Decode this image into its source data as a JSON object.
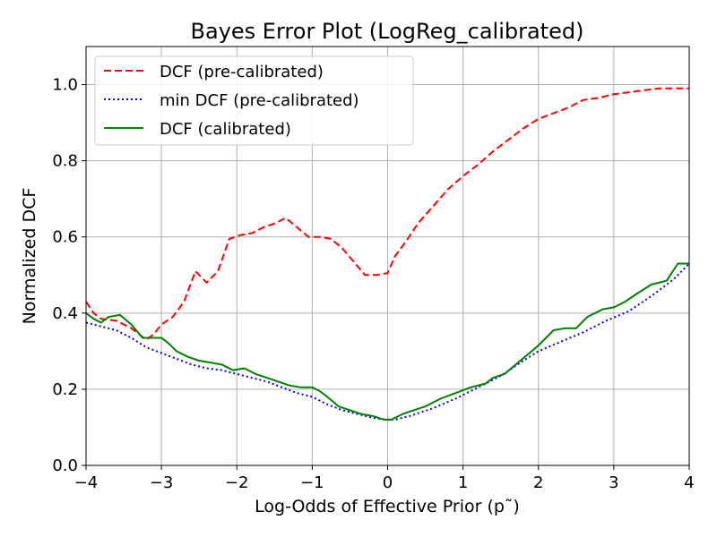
{
  "chart_data": {
    "type": "line",
    "title": "Bayes Error Plot (LogReg_calibrated)",
    "xlabel": "Log-Odds of Effective Prior (p˜)",
    "ylabel": "Normalized DCF",
    "xlim": [
      -4,
      4
    ],
    "ylim": [
      0,
      1.1
    ],
    "xticks": [
      -4,
      -3,
      -2,
      -1,
      0,
      1,
      2,
      3,
      4
    ],
    "xtick_labels": [
      "−4",
      "−3",
      "−2",
      "−1",
      "0",
      "1",
      "2",
      "3",
      "4"
    ],
    "yticks": [
      0,
      0.2,
      0.4,
      0.6,
      0.8,
      1.0
    ],
    "ytick_labels": [
      "0.0",
      "0.2",
      "0.4",
      "0.6",
      "0.8",
      "1.0"
    ],
    "grid": true,
    "legend_position": "top-left",
    "series": [
      {
        "name": "DCF (pre-calibrated)",
        "color": "#ff0000",
        "style": "dashed",
        "x": [
          -4.0,
          -3.9,
          -3.8,
          -3.6,
          -3.4,
          -3.2,
          -3.1,
          -3.0,
          -2.85,
          -2.7,
          -2.55,
          -2.4,
          -2.25,
          -2.1,
          -1.95,
          -1.8,
          -1.65,
          -1.5,
          -1.35,
          -1.2,
          -1.05,
          -0.9,
          -0.75,
          -0.6,
          -0.45,
          -0.3,
          -0.15,
          0.0,
          0.1,
          0.25,
          0.4,
          0.6,
          0.8,
          1.0,
          1.2,
          1.4,
          1.6,
          1.8,
          2.0,
          2.2,
          2.4,
          2.6,
          2.8,
          3.0,
          3.2,
          3.4,
          3.6,
          3.8,
          4.0
        ],
        "values": [
          0.43,
          0.4,
          0.385,
          0.38,
          0.36,
          0.33,
          0.345,
          0.37,
          0.39,
          0.43,
          0.51,
          0.48,
          0.51,
          0.595,
          0.605,
          0.61,
          0.625,
          0.635,
          0.65,
          0.625,
          0.6,
          0.6,
          0.595,
          0.57,
          0.535,
          0.5,
          0.5,
          0.505,
          0.55,
          0.59,
          0.635,
          0.68,
          0.725,
          0.76,
          0.79,
          0.825,
          0.855,
          0.885,
          0.91,
          0.925,
          0.94,
          0.96,
          0.965,
          0.975,
          0.98,
          0.985,
          0.99,
          0.99,
          0.99
        ]
      },
      {
        "name": "min DCF (pre-calibrated)",
        "color": "#0000ff",
        "style": "dotted",
        "x": [
          -4.0,
          -3.8,
          -3.6,
          -3.4,
          -3.2,
          -3.0,
          -2.8,
          -2.6,
          -2.4,
          -2.2,
          -2.0,
          -1.8,
          -1.6,
          -1.4,
          -1.2,
          -1.0,
          -0.8,
          -0.6,
          -0.4,
          -0.2,
          0.0,
          0.1,
          0.3,
          0.6,
          0.9,
          1.2,
          1.5,
          1.8,
          2.0,
          2.3,
          2.6,
          2.9,
          3.2,
          3.5,
          3.8,
          4.0
        ],
        "values": [
          0.375,
          0.365,
          0.355,
          0.335,
          0.31,
          0.295,
          0.28,
          0.265,
          0.255,
          0.25,
          0.24,
          0.23,
          0.22,
          0.205,
          0.19,
          0.18,
          0.16,
          0.145,
          0.135,
          0.125,
          0.12,
          0.12,
          0.13,
          0.15,
          0.175,
          0.205,
          0.235,
          0.275,
          0.3,
          0.325,
          0.35,
          0.38,
          0.405,
          0.445,
          0.49,
          0.53
        ]
      },
      {
        "name": "DCF (calibrated)",
        "color": "#008000",
        "style": "solid",
        "x": [
          -4.0,
          -3.9,
          -3.8,
          -3.7,
          -3.55,
          -3.4,
          -3.25,
          -3.1,
          -3.0,
          -2.9,
          -2.8,
          -2.65,
          -2.5,
          -2.35,
          -2.2,
          -2.05,
          -1.9,
          -1.75,
          -1.6,
          -1.45,
          -1.3,
          -1.15,
          -1.0,
          -0.9,
          -0.8,
          -0.65,
          -0.5,
          -0.35,
          -0.2,
          -0.05,
          0.05,
          0.2,
          0.35,
          0.5,
          0.7,
          0.9,
          1.1,
          1.3,
          1.4,
          1.55,
          1.7,
          1.85,
          2.0,
          2.2,
          2.35,
          2.5,
          2.65,
          2.85,
          3.0,
          3.15,
          3.3,
          3.5,
          3.7,
          3.85,
          4.0
        ],
        "values": [
          0.4,
          0.385,
          0.375,
          0.39,
          0.395,
          0.37,
          0.335,
          0.335,
          0.335,
          0.32,
          0.3,
          0.285,
          0.275,
          0.27,
          0.265,
          0.25,
          0.255,
          0.24,
          0.23,
          0.22,
          0.21,
          0.205,
          0.205,
          0.195,
          0.18,
          0.155,
          0.145,
          0.135,
          0.13,
          0.12,
          0.12,
          0.135,
          0.145,
          0.155,
          0.175,
          0.19,
          0.205,
          0.215,
          0.23,
          0.24,
          0.265,
          0.29,
          0.315,
          0.355,
          0.36,
          0.36,
          0.39,
          0.41,
          0.415,
          0.43,
          0.45,
          0.475,
          0.485,
          0.53,
          0.53
        ]
      }
    ]
  }
}
